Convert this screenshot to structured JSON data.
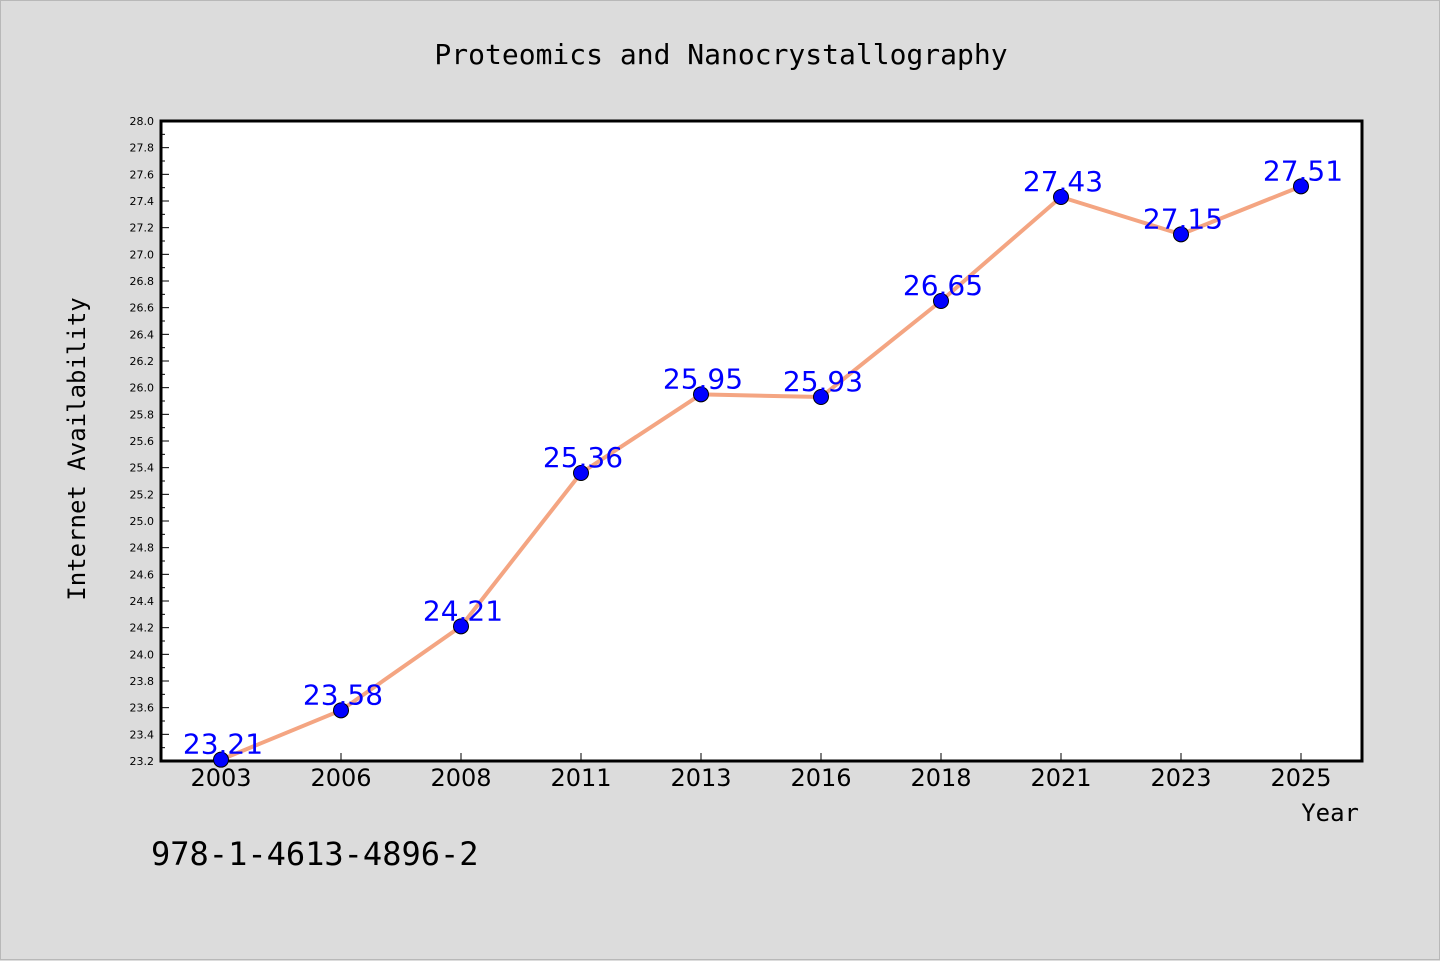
{
  "chart_data": {
    "type": "line",
    "title": "Proteomics and Nanocrystallography",
    "xlabel": "Year",
    "ylabel": "Internet Availability",
    "categories": [
      "2003",
      "2006",
      "2008",
      "2011",
      "2013",
      "2016",
      "2018",
      "2021",
      "2023",
      "2025"
    ],
    "values": [
      23.21,
      23.58,
      24.21,
      25.36,
      25.95,
      25.93,
      26.65,
      27.43,
      27.15,
      27.51
    ],
    "data_labels": [
      "23.21",
      "23.58",
      "24.21",
      "25.36",
      "25.95",
      "25.93",
      "26.65",
      "27.43",
      "27.15",
      "27.51"
    ],
    "ylim": [
      23.2,
      28.0
    ],
    "yticks": [
      "23.2",
      "23.4",
      "23.6",
      "23.8",
      "24.0",
      "24.2",
      "24.4",
      "24.6",
      "24.8",
      "25.0",
      "25.2",
      "25.4",
      "25.6",
      "25.8",
      "26.0",
      "26.2",
      "26.4",
      "26.6",
      "26.8",
      "27.0",
      "27.2",
      "27.4",
      "27.6",
      "27.8",
      "28.0"
    ],
    "grid": false,
    "line_color": "#f4a582",
    "marker_color": "#0000ff",
    "label_color": "#0000ff"
  },
  "footer_note": "978-1-4613-4896-2"
}
